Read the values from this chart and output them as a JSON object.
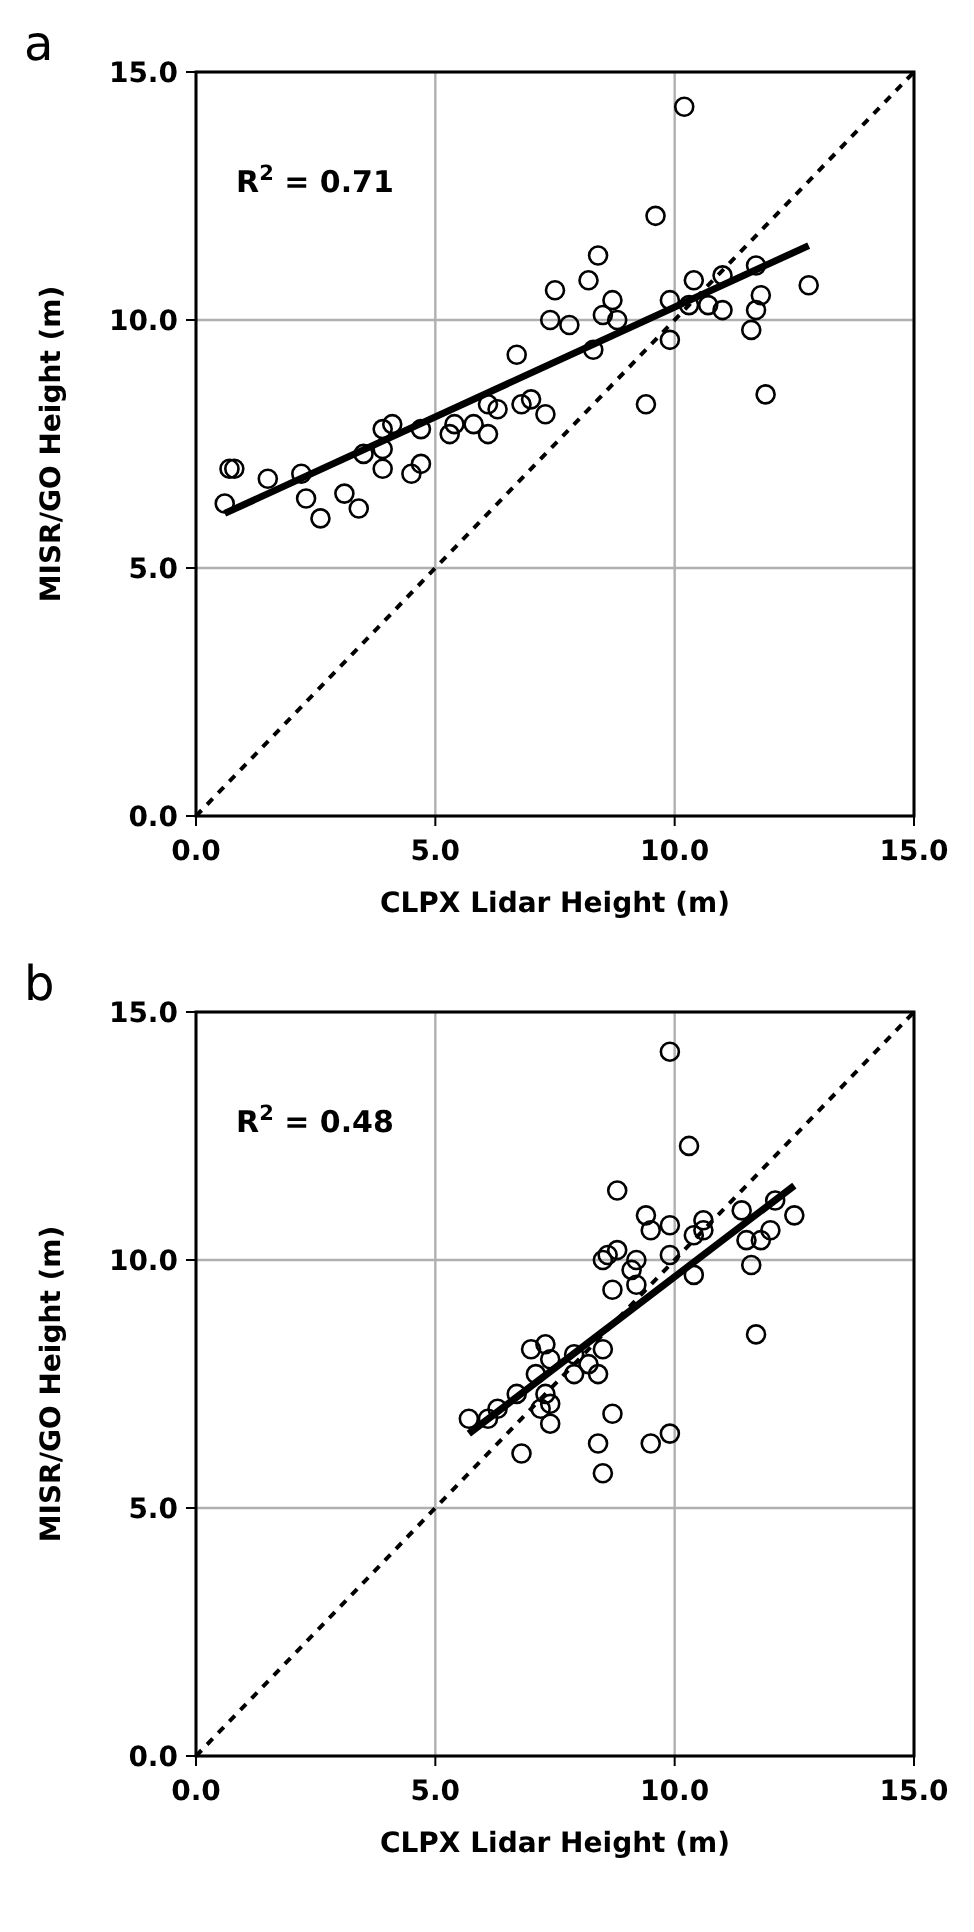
{
  "chart_data": [
    {
      "type": "scatter",
      "title": "a",
      "xlabel": "CLPX Lidar Height (m)",
      "ylabel": "MISR/GO Height (m)",
      "xlim": [
        0,
        15
      ],
      "ylim": [
        0,
        15
      ],
      "xticks": [
        {
          "value": 0,
          "label": "0.0"
        },
        {
          "value": 5,
          "label": "5.0"
        },
        {
          "value": 10,
          "label": "10.0"
        },
        {
          "value": 15,
          "label": "15.0"
        }
      ],
      "yticks": [
        {
          "value": 0,
          "label": "0.0"
        },
        {
          "value": 5,
          "label": "5.0"
        },
        {
          "value": 10,
          "label": "10.0"
        },
        {
          "value": 15,
          "label": "15.0"
        }
      ],
      "grid": true,
      "annotations": [
        "R$^{2}$ = 0.71"
      ],
      "series": [
        {
          "type": "scatter",
          "color": "#000000",
          "marker": "circle",
          "x": [
            10.2,
            9.6,
            8.4,
            8.2,
            7.5,
            8.7,
            7.4,
            7.8,
            8.5,
            8.8,
            8.3,
            6.7,
            9.4,
            9.9,
            9.9,
            10.4,
            11.0,
            10.3,
            10.7,
            11.0,
            11.7,
            11.8,
            11.7,
            11.6,
            11.9,
            12.8,
            6.1,
            6.8,
            7.0,
            7.3,
            6.3,
            5.8,
            5.4,
            5.3,
            6.1,
            4.7,
            0.6,
            0.7,
            0.8,
            1.5,
            2.2,
            2.3,
            2.6,
            3.1,
            3.4,
            3.5,
            3.9,
            4.1,
            3.9,
            3.9,
            4.5,
            4.7
          ],
          "values": [
            14.3,
            12.1,
            11.3,
            10.8,
            10.6,
            10.4,
            10.0,
            9.9,
            10.1,
            10.0,
            9.4,
            9.3,
            8.3,
            10.4,
            9.6,
            10.8,
            10.9,
            10.3,
            10.3,
            10.2,
            11.1,
            10.5,
            10.2,
            9.8,
            8.5,
            10.7,
            8.3,
            8.3,
            8.4,
            8.1,
            8.2,
            7.9,
            7.9,
            7.7,
            7.7,
            7.8,
            6.3,
            7.0,
            7.0,
            6.8,
            6.9,
            6.4,
            6.0,
            6.5,
            6.2,
            7.3,
            7.8,
            7.9,
            7.4,
            7.0,
            6.9,
            7.1
          ]
        },
        {
          "type": "line",
          "color": "#000000",
          "line_style": "solid",
          "x": [
            0.6,
            12.8
          ],
          "values": [
            6.1,
            11.5
          ]
        },
        {
          "type": "line",
          "color": "#000000",
          "line_style": "dashed",
          "x": [
            0,
            15
          ],
          "values": [
            0,
            15
          ]
        }
      ]
    },
    {
      "type": "scatter",
      "title": "b",
      "xlabel": "CLPX Lidar Height (m)",
      "ylabel": "MISR/GO Height (m)",
      "xlim": [
        0,
        15
      ],
      "ylim": [
        0,
        15
      ],
      "xticks": [
        {
          "value": 0,
          "label": "0.0"
        },
        {
          "value": 5,
          "label": "5.0"
        },
        {
          "value": 10,
          "label": "10.0"
        },
        {
          "value": 15,
          "label": "15.0"
        }
      ],
      "yticks": [
        {
          "value": 0,
          "label": "0.0"
        },
        {
          "value": 5,
          "label": "5.0"
        },
        {
          "value": 10,
          "label": "10.0"
        },
        {
          "value": 15,
          "label": "15.0"
        }
      ],
      "grid": true,
      "annotations": [
        "R$^{2}$ = 0.48"
      ],
      "series": [
        {
          "type": "scatter",
          "color": "#000000",
          "marker": "circle",
          "x": [
            9.9,
            10.3,
            8.8,
            9.4,
            9.9,
            9.5,
            10.6,
            10.4,
            10.6,
            11.4,
            12.1,
            12.5,
            12.0,
            11.5,
            11.8,
            11.6,
            11.7,
            8.8,
            8.5,
            8.6,
            9.2,
            9.9,
            9.1,
            9.2,
            8.7,
            10.4,
            7.0,
            7.3,
            7.4,
            7.1,
            7.9,
            8.2,
            8.5,
            8.4,
            7.9,
            6.7,
            7.3,
            7.2,
            7.4,
            7.4,
            8.7,
            6.3,
            6.1,
            5.7,
            6.8,
            8.4,
            8.5,
            9.5,
            9.9
          ],
          "values": [
            14.2,
            12.3,
            11.4,
            10.9,
            10.7,
            10.6,
            10.8,
            10.5,
            10.6,
            11.0,
            11.2,
            10.9,
            10.6,
            10.4,
            10.4,
            9.9,
            8.5,
            10.2,
            10.0,
            10.1,
            10.0,
            10.1,
            9.8,
            9.5,
            9.4,
            9.7,
            8.2,
            8.3,
            8.0,
            7.7,
            8.1,
            7.9,
            8.2,
            7.7,
            7.7,
            7.3,
            7.3,
            7.0,
            7.1,
            6.7,
            6.9,
            7.0,
            6.8,
            6.8,
            6.1,
            6.3,
            5.7,
            6.3,
            6.5
          ]
        },
        {
          "type": "line",
          "color": "#000000",
          "line_style": "solid",
          "x": [
            5.7,
            12.5
          ],
          "values": [
            6.5,
            11.5
          ]
        },
        {
          "type": "line",
          "color": "#000000",
          "line_style": "dashed",
          "x": [
            0,
            15
          ],
          "values": [
            0,
            15
          ]
        }
      ]
    }
  ]
}
